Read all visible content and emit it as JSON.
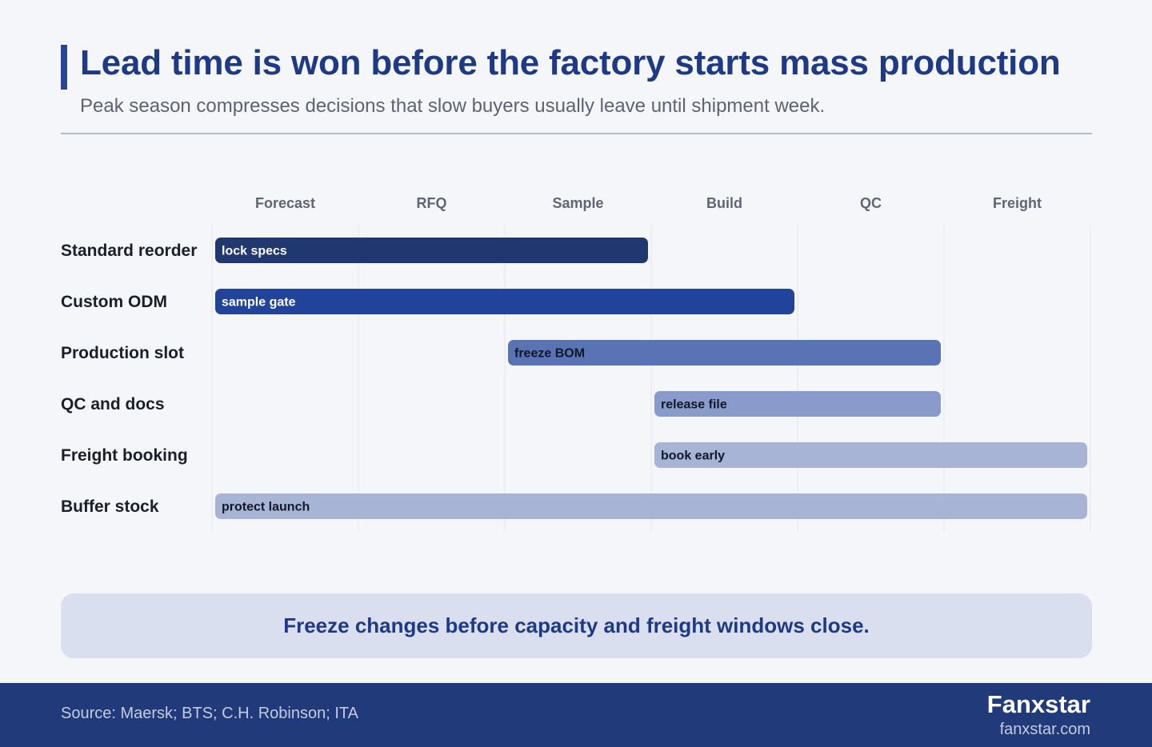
{
  "header": {
    "title": "Lead time is won before the factory starts mass production",
    "subtitle": "Peak season compresses decisions that slow buyers usually leave until shipment week."
  },
  "chart_data": {
    "type": "gantt",
    "stages": [
      "Forecast",
      "RFQ",
      "Sample",
      "Build",
      "QC",
      "Freight"
    ],
    "tasks": [
      {
        "name": "Standard reorder",
        "label": "lock specs",
        "start": 0,
        "end": 3,
        "color": "#20376f",
        "text_color": "#ffffff"
      },
      {
        "name": "Custom ODM",
        "label": "sample gate",
        "start": 0,
        "end": 4,
        "color": "#22439a",
        "text_color": "#ffffff"
      },
      {
        "name": "Production slot",
        "label": "freeze BOM",
        "start": 2,
        "end": 5,
        "color": "#5a73b4",
        "text_color": "#111827"
      },
      {
        "name": "QC and docs",
        "label": "release file",
        "start": 3,
        "end": 5,
        "color": "#889bca",
        "text_color": "#111827"
      },
      {
        "name": "Freight booking",
        "label": "book early",
        "start": 3,
        "end": 6,
        "color": "#a7b4d6",
        "text_color": "#111827"
      },
      {
        "name": "Buffer stock",
        "label": "protect launch",
        "start": 0,
        "end": 6,
        "color": "#a7b4d6",
        "text_color": "#111827"
      }
    ],
    "grid": true
  },
  "callout": {
    "text": "Freeze changes before capacity and freight windows close."
  },
  "footer": {
    "source": "Source: Maersk; BTS; C.H. Robinson; ITA",
    "brand": "Fanxstar",
    "url": "fanxstar.com"
  }
}
